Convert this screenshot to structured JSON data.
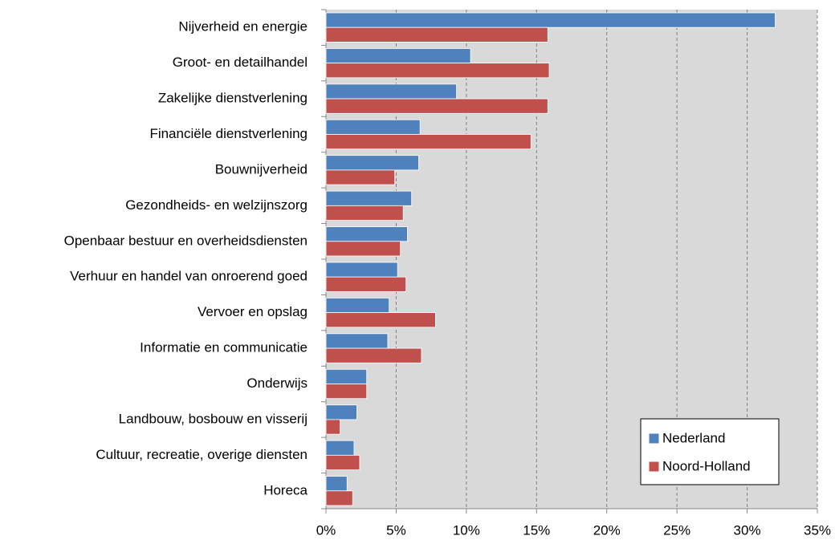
{
  "chart_data": {
    "type": "bar",
    "orientation": "horizontal",
    "categories": [
      "Nijverheid en energie",
      "Groot- en detailhandel",
      "Zakelijke dienstverlening",
      "Financiële dienstverlening",
      "Bouwnijverheid",
      "Gezondheids- en welzijnszorg",
      "Openbaar bestuur en overheidsdiensten",
      "Verhuur en handel van onroerend goed",
      "Vervoer en opslag",
      "Informatie en communicatie",
      "Onderwijs",
      "Landbouw, bosbouw en visserij",
      "Cultuur, recreatie, overige diensten",
      "Horeca"
    ],
    "series": [
      {
        "name": "Nederland",
        "color": "#4f81bd",
        "values": [
          32.0,
          10.3,
          9.3,
          6.7,
          6.6,
          6.1,
          5.8,
          5.1,
          4.5,
          4.4,
          2.9,
          2.2,
          2.0,
          1.5
        ]
      },
      {
        "name": "Noord-Holland",
        "color": "#c0504d",
        "values": [
          15.8,
          15.9,
          15.8,
          14.6,
          4.9,
          5.5,
          5.3,
          5.7,
          7.8,
          6.8,
          2.9,
          1.0,
          2.4,
          1.9
        ]
      }
    ],
    "xlim": [
      0,
      35
    ],
    "xticks": [
      {
        "value": 0,
        "label": "0%"
      },
      {
        "value": 5,
        "label": "5%"
      },
      {
        "value": 10,
        "label": "10%"
      },
      {
        "value": 15,
        "label": "15%"
      },
      {
        "value": 20,
        "label": "20%"
      },
      {
        "value": 25,
        "label": "25%"
      },
      {
        "value": 30,
        "label": "30%"
      },
      {
        "value": 35,
        "label": "35%"
      }
    ],
    "grid": true,
    "legend": "bottom-right"
  }
}
